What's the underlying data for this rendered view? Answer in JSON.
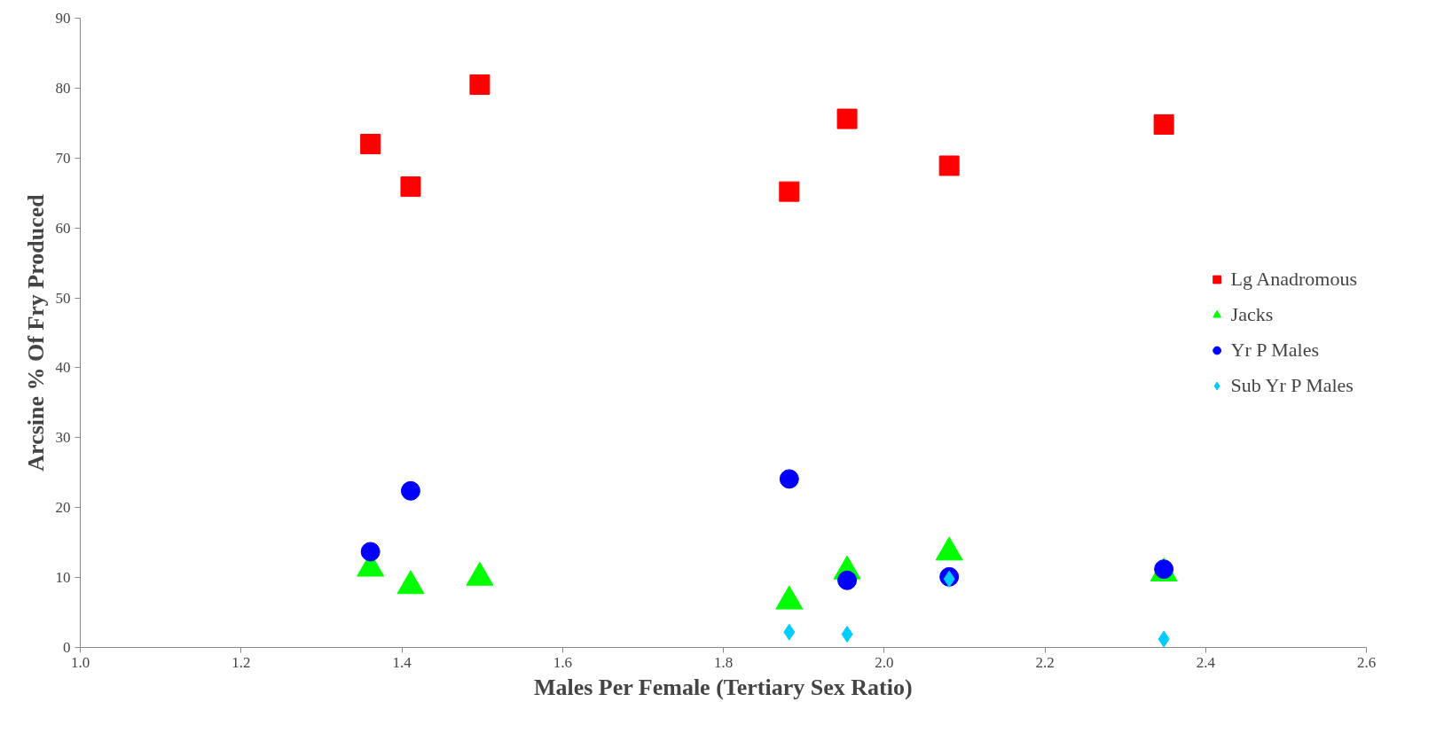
{
  "chart_data": {
    "type": "scatter",
    "xlabel": "Males Per Female (Tertiary Sex Ratio)",
    "ylabel": "Arcsine % Of Fry Produced",
    "xlim": [
      1.0,
      2.6
    ],
    "xticks": [
      {
        "value": 1.0,
        "label": "1.0"
      },
      {
        "value": 1.2,
        "label": "1.2"
      },
      {
        "value": 1.4,
        "label": "1.4"
      },
      {
        "value": 1.6,
        "label": "1.6"
      },
      {
        "value": 1.8,
        "label": "1.8"
      },
      {
        "value": 2.0,
        "label": "2.0"
      },
      {
        "value": 2.2,
        "label": "2.2"
      },
      {
        "value": 2.4,
        "label": "2.4"
      },
      {
        "value": 2.6,
        "label": "2.6"
      }
    ],
    "ylim": [
      0,
      90
    ],
    "yticks": [
      0,
      10,
      20,
      30,
      40,
      50,
      60,
      70,
      80,
      90
    ],
    "grid": false,
    "legend": "right",
    "series": [
      {
        "name": "Lg Anadromous",
        "color": "#ff0000",
        "marker": "square",
        "x": [
          1.361,
          1.411,
          1.497,
          1.882,
          1.954,
          2.081,
          2.348
        ],
        "values": [
          72.0,
          65.9,
          80.5,
          65.2,
          75.6,
          68.9,
          74.8
        ]
      },
      {
        "name": "Jacks",
        "color": "#00ff00",
        "marker": "triangle",
        "x": [
          1.361,
          1.411,
          1.497,
          1.882,
          1.954,
          2.081,
          2.348
        ],
        "values": [
          11.3,
          8.8,
          10.0,
          6.6,
          10.9,
          13.6,
          10.6
        ]
      },
      {
        "name": "Yr P Males",
        "color": "#0000ff",
        "marker": "circle",
        "x": [
          1.361,
          1.411,
          1.882,
          1.954,
          2.081,
          2.348
        ],
        "values": [
          13.7,
          22.4,
          24.1,
          9.6,
          10.1,
          11.2
        ]
      },
      {
        "name": "Sub Yr P Males",
        "color": "#00ccff",
        "marker": "diamond",
        "x": [
          1.882,
          1.954,
          2.081,
          2.348
        ],
        "values": [
          2.2,
          1.9,
          9.8,
          1.2
        ]
      }
    ]
  }
}
